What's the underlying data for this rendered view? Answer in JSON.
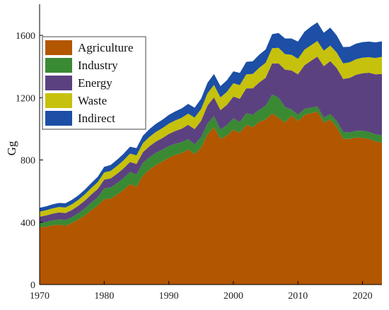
{
  "chart_data": {
    "type": "area",
    "stacked": true,
    "title": "",
    "xlabel": "",
    "ylabel": "Gg",
    "xlim": [
      1970,
      2023
    ],
    "ylim": [
      0,
      1800
    ],
    "x_ticks": [
      1970,
      1980,
      1990,
      2000,
      2010,
      2020
    ],
    "y_ticks": [
      0,
      400,
      800,
      1200,
      1600
    ],
    "grid": false,
    "legend_position": "top-left",
    "x": [
      1970,
      1971,
      1972,
      1973,
      1974,
      1975,
      1976,
      1977,
      1978,
      1979,
      1980,
      1981,
      1982,
      1983,
      1984,
      1985,
      1986,
      1987,
      1988,
      1989,
      1990,
      1991,
      1992,
      1993,
      1994,
      1995,
      1996,
      1997,
      1998,
      1999,
      2000,
      2001,
      2002,
      2003,
      2004,
      2005,
      2006,
      2007,
      2008,
      2009,
      2010,
      2011,
      2012,
      2013,
      2014,
      2015,
      2016,
      2017,
      2018,
      2019,
      2020,
      2021,
      2022,
      2023
    ],
    "series": [
      {
        "name": "Agriculture",
        "color": "#B35600",
        "values": [
          368,
          372,
          380,
          385,
          378,
          395,
          418,
          445,
          478,
          508,
          548,
          552,
          578,
          608,
          645,
          628,
          700,
          738,
          768,
          790,
          815,
          832,
          845,
          868,
          838,
          878,
          965,
          1010,
          935,
          958,
          995,
          975,
          1025,
          1010,
          1045,
          1060,
          1100,
          1070,
          1040,
          1085,
          1050,
          1090,
          1100,
          1110,
          1040,
          1060,
          1010,
          935,
          935,
          945,
          942,
          935,
          920,
          912
        ]
      },
      {
        "name": "Industry",
        "color": "#3A8A34",
        "values": [
          28,
          30,
          32,
          34,
          36,
          38,
          40,
          44,
          48,
          52,
          70,
          72,
          74,
          76,
          78,
          80,
          82,
          80,
          78,
          76,
          74,
          72,
          70,
          66,
          62,
          68,
          70,
          72,
          60,
          66,
          72,
          68,
          75,
          80,
          78,
          88,
          120,
          130,
          100,
          40,
          40,
          38,
          36,
          34,
          32,
          35,
          40,
          45,
          42,
          42,
          45,
          45,
          45,
          45
        ]
      },
      {
        "name": "Energy",
        "color": "#5C4180",
        "values": [
          40,
          42,
          43,
          44,
          45,
          46,
          48,
          50,
          52,
          54,
          56,
          58,
          60,
          62,
          64,
          66,
          68,
          70,
          72,
          74,
          78,
          82,
          86,
          92,
          98,
          105,
          115,
          120,
          125,
          130,
          140,
          150,
          160,
          170,
          175,
          180,
          200,
          220,
          240,
          250,
          260,
          280,
          300,
          320,
          330,
          340,
          340,
          340,
          350,
          360,
          370,
          380,
          385,
          395
        ]
      },
      {
        "name": "Waste",
        "color": "#C6C10C",
        "values": [
          32,
          33,
          34,
          35,
          36,
          37,
          38,
          40,
          42,
          44,
          46,
          48,
          50,
          52,
          54,
          56,
          58,
          60,
          62,
          64,
          66,
          68,
          70,
          72,
          74,
          76,
          78,
          80,
          82,
          84,
          86,
          88,
          90,
          92,
          94,
          96,
          98,
          100,
          100,
          100,
          100,
          100,
          100,
          100,
          100,
          100,
          100,
          100,
          100,
          100,
          100,
          100,
          105,
          110
        ]
      },
      {
        "name": "Indirect",
        "color": "#1C4FA5",
        "values": [
          25,
          25,
          26,
          26,
          27,
          28,
          29,
          30,
          32,
          34,
          36,
          38,
          40,
          42,
          44,
          46,
          48,
          50,
          52,
          54,
          56,
          58,
          60,
          62,
          64,
          66,
          68,
          70,
          72,
          74,
          76,
          78,
          80,
          82,
          84,
          86,
          90,
          95,
          100,
          105,
          110,
          115,
          120,
          120,
          115,
          115,
          110,
          105,
          100,
          100,
          100,
          100,
          100,
          100
        ]
      }
    ]
  }
}
